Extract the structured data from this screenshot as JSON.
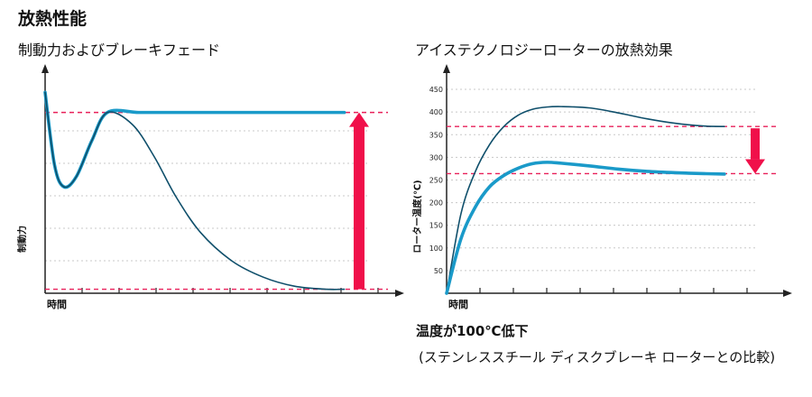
{
  "page_title": "放熱性能",
  "note": {
    "title": "温度が100℃低下",
    "body": "(ステンレススチール ディスクブレーキ ローターとの比較)"
  },
  "chart_data": [
    {
      "type": "line",
      "title": "制動力およびブレーキフェード",
      "xlabel": "時間",
      "ylabel": "制動力",
      "x_ticks": 10,
      "grid": "horizontal-dotted",
      "legend": "none",
      "series": [
        {
          "color": "#1a9ac9",
          "style": "thick",
          "x": [
            0,
            0.3,
            0.6,
            1.0,
            1.5,
            2.0,
            3,
            4,
            5,
            6,
            7,
            8,
            9,
            9.6
          ],
          "y": [
            10,
            6.4,
            5.3,
            5.8,
            7.6,
            9.0,
            9.0,
            9.0,
            9.0,
            9.0,
            9.0,
            9.0,
            9.0,
            9.0
          ]
        },
        {
          "color": "#0f4f6b",
          "style": "thin",
          "x": [
            0,
            0.3,
            0.6,
            1.0,
            1.5,
            2.0,
            2.8,
            3.5,
            4.2,
            5.0,
            6.0,
            7.0,
            8.0,
            9.0,
            9.6
          ],
          "y": [
            10,
            6.4,
            5.3,
            5.8,
            7.6,
            9.0,
            8.4,
            6.8,
            4.8,
            3.0,
            1.6,
            0.8,
            0.35,
            0.2,
            0.2
          ]
        }
      ],
      "reference_lines": [
        9.0,
        0.2
      ],
      "arrow": {
        "direction": "up",
        "color": "#f0104a"
      },
      "ylim": [
        0,
        10.6
      ],
      "xlim": [
        0,
        11
      ]
    },
    {
      "type": "line",
      "title": "アイステクノロジーローターの放熱効果",
      "xlabel": "時間",
      "ylabel": "ローター温度(℃)",
      "y_ticks": [
        50,
        100,
        150,
        200,
        250,
        300,
        350,
        400,
        450
      ],
      "x_ticks": 10,
      "grid": "horizontal-dotted",
      "legend": "none",
      "series": [
        {
          "color": "#0f4f6b",
          "style": "thin",
          "x": [
            0,
            0.5,
            1,
            1.5,
            2,
            2.5,
            3,
            3.5,
            4,
            5,
            6,
            7,
            8,
            9,
            9.7
          ],
          "y": [
            0,
            175,
            268,
            328,
            368,
            393,
            406,
            411,
            412,
            409,
            398,
            385,
            375,
            369,
            368
          ]
        },
        {
          "color": "#1a9ac9",
          "style": "thick",
          "x": [
            0,
            0.5,
            1,
            1.5,
            2,
            2.5,
            3,
            3.5,
            4,
            5,
            6,
            7,
            8,
            9,
            9.7
          ],
          "y": [
            0,
            120,
            190,
            235,
            260,
            276,
            286,
            289,
            287,
            281,
            274,
            269,
            266,
            264,
            263
          ]
        }
      ],
      "reference_lines": [
        368,
        264
      ],
      "arrow": {
        "direction": "down",
        "color": "#f0104a"
      },
      "ylim": [
        0,
        470
      ],
      "xlim": [
        0,
        11.5
      ]
    }
  ]
}
